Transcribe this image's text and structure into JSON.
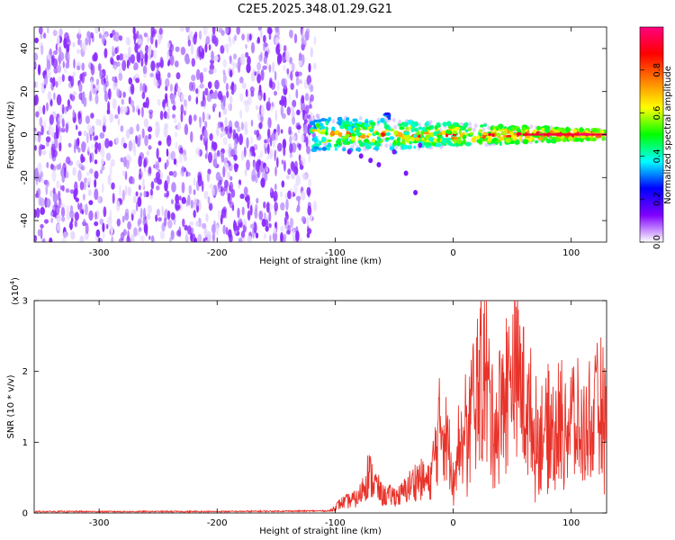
{
  "title": "C2E5.2025.348.01.29.G21",
  "chart_data": [
    {
      "type": "heatmap",
      "name": "spectrogram",
      "xlabel": "Height of straight line (km)",
      "ylabel": "Frequency (Hz)",
      "xlim": [
        -355,
        130
      ],
      "ylim": [
        -50,
        50
      ],
      "xticks": [
        -300,
        -200,
        -100,
        0,
        100
      ],
      "yticks": [
        -40,
        -20,
        0,
        20,
        40
      ],
      "colorbar": {
        "label": "Normalized spectral amplitude",
        "range": [
          0,
          1
        ],
        "ticks": [
          "0.0",
          "0.2",
          "0.4",
          "0.6",
          "0.8"
        ],
        "tick_values": [
          0,
          0.2,
          0.4,
          0.6,
          0.8
        ],
        "colors": [
          "#ffffff",
          "#e8d8ff",
          "#8000ff",
          "#0000ff",
          "#00ffff",
          "#00ff00",
          "#ffff00",
          "#ff8000",
          "#ff0000",
          "#ff0080"
        ]
      },
      "regions": [
        {
          "description": "noise",
          "x_range": [
            -355,
            -117
          ],
          "freq_range": [
            -50,
            50
          ],
          "amplitude": 0.05
        },
        {
          "description": "signal band",
          "x_range": [
            -120,
            130
          ],
          "freq_center": 0,
          "freq_halfwidth": [
            8,
            2
          ],
          "amplitude_range": [
            0.2,
            1.0
          ]
        },
        {
          "description": "spurious",
          "points": [
            [
              -88,
              -8
            ],
            [
              -78,
              -10
            ],
            [
              -70,
              -12
            ],
            [
              -63,
              -14
            ],
            [
              -50,
              -8
            ],
            [
              -40,
              -18
            ],
            [
              -32,
              -27
            ],
            [
              -28,
              -5
            ]
          ]
        }
      ]
    },
    {
      "type": "line",
      "name": "snr",
      "xlabel": "Height of straight line (km)",
      "ylabel": "SNR (10 * v/v)",
      "scale_label": "(x10",
      "scale_exponent": "4",
      "scale_suffix": ")",
      "xlim": [
        -355,
        130
      ],
      "ylim": [
        0,
        3
      ],
      "xticks": [
        -300,
        -200,
        -100,
        0,
        100
      ],
      "yticks": [
        0,
        1,
        2,
        3
      ],
      "color": "#e8332a",
      "series_description": "Near 0.02 from -355 to -105 km, rises to about 0.3 around -60 km with peak 0.8 at -72 km, about 0.6 near -20 km, peaks 1.9 near -10 km, 2.95 near 25 km and 3.0 near 52 km, then fluctuates between 0.8 and 2.3 to 130 km",
      "anchor_points": [
        [
          -355,
          0.02
        ],
        [
          -200,
          0.02
        ],
        [
          -105,
          0.03
        ],
        [
          -95,
          0.2
        ],
        [
          -80,
          0.3
        ],
        [
          -72,
          0.8
        ],
        [
          -60,
          0.35
        ],
        [
          -45,
          0.35
        ],
        [
          -30,
          0.7
        ],
        [
          -20,
          0.6
        ],
        [
          -10,
          1.9
        ],
        [
          0,
          0.9
        ],
        [
          10,
          1.5
        ],
        [
          25,
          2.95
        ],
        [
          35,
          1.7
        ],
        [
          52,
          3.0
        ],
        [
          70,
          1.5
        ],
        [
          90,
          1.7
        ],
        [
          100,
          1.9
        ],
        [
          110,
          1.5
        ],
        [
          125,
          2.1
        ],
        [
          130,
          1.6
        ]
      ]
    }
  ]
}
